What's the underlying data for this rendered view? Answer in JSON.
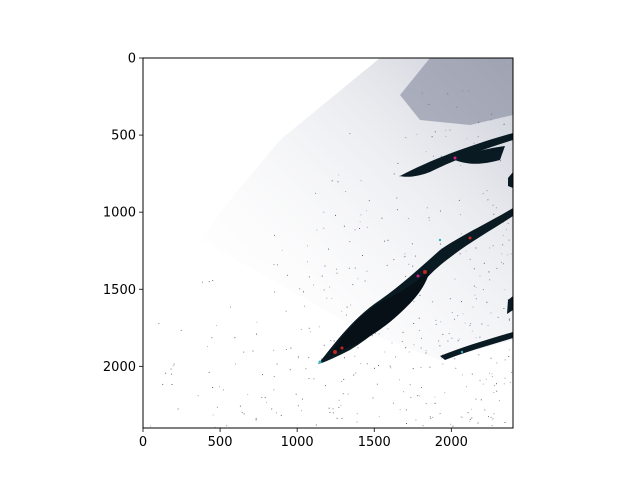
{
  "figure": {
    "xlim": [
      0,
      2400
    ],
    "ylim": [
      2400,
      0
    ],
    "x_ticks": [
      {
        "value": 0,
        "label": "0"
      },
      {
        "value": 500,
        "label": "500"
      },
      {
        "value": 1000,
        "label": "1000"
      },
      {
        "value": 1500,
        "label": "1500"
      },
      {
        "value": 2000,
        "label": "2000"
      }
    ],
    "y_ticks": [
      {
        "value": 0,
        "label": "0"
      },
      {
        "value": 500,
        "label": "500"
      },
      {
        "value": 1000,
        "label": "1000"
      },
      {
        "value": 1500,
        "label": "1500"
      },
      {
        "value": 2000,
        "label": "2000"
      }
    ],
    "colors": {
      "background": "#ffffff",
      "axes": "#000000",
      "lake": "#0a1a22",
      "haze": "#9aa0b4",
      "edge_red": "#c0281e",
      "edge_cyan": "#2fb7c8",
      "edge_magenta": "#d4208e"
    }
  }
}
